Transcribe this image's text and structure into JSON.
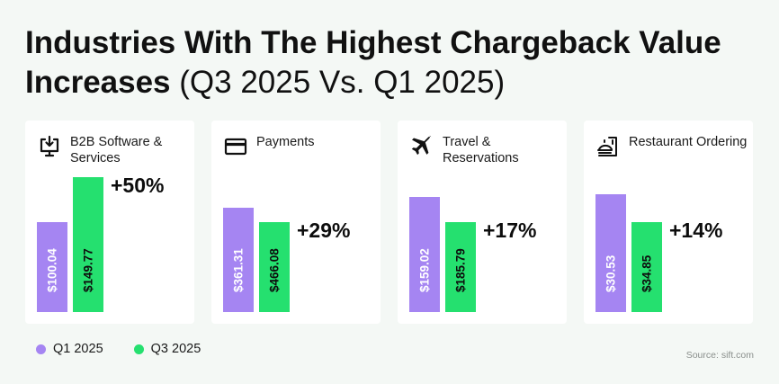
{
  "title": {
    "bold": "Industries With The Highest Chargeback Value Increases",
    "light": "(Q3 2025 Vs. Q1 2025)"
  },
  "colors": {
    "q1": "#a585f2",
    "q3": "#25e06f",
    "background": "#f4f8f5"
  },
  "legend": [
    {
      "label": "Q1 2025",
      "color": "#a585f2"
    },
    {
      "label": "Q3 2025",
      "color": "#25e06f"
    }
  ],
  "source": "Source: sift.com",
  "chart_data": {
    "type": "bar",
    "categories": [
      "B2B Software & Services",
      "Payments",
      "Travel & Reservations",
      "Restaurant Ordering"
    ],
    "category_icons": [
      "computer-download-icon",
      "credit-card-icon",
      "airplane-icon",
      "restaurant-bag-icon"
    ],
    "series": [
      {
        "name": "Q1 2025",
        "values": [
          100.04,
          361.31,
          159.02,
          30.53
        ],
        "labels": [
          "$100.04",
          "$361.31",
          "$159.02",
          "$30.53"
        ]
      },
      {
        "name": "Q3 2025",
        "values": [
          149.77,
          466.08,
          185.79,
          34.85
        ],
        "labels": [
          "$149.77",
          "$466.08",
          "$185.79",
          "$34.85"
        ]
      }
    ],
    "increase_labels": [
      "+50%",
      "+29%",
      "+17%",
      "+14%"
    ],
    "title": "Industries With The Highest Chargeback Value Increases (Q3 2025 Vs. Q1 2025)",
    "grid": false,
    "legend_position": "bottom-left"
  }
}
